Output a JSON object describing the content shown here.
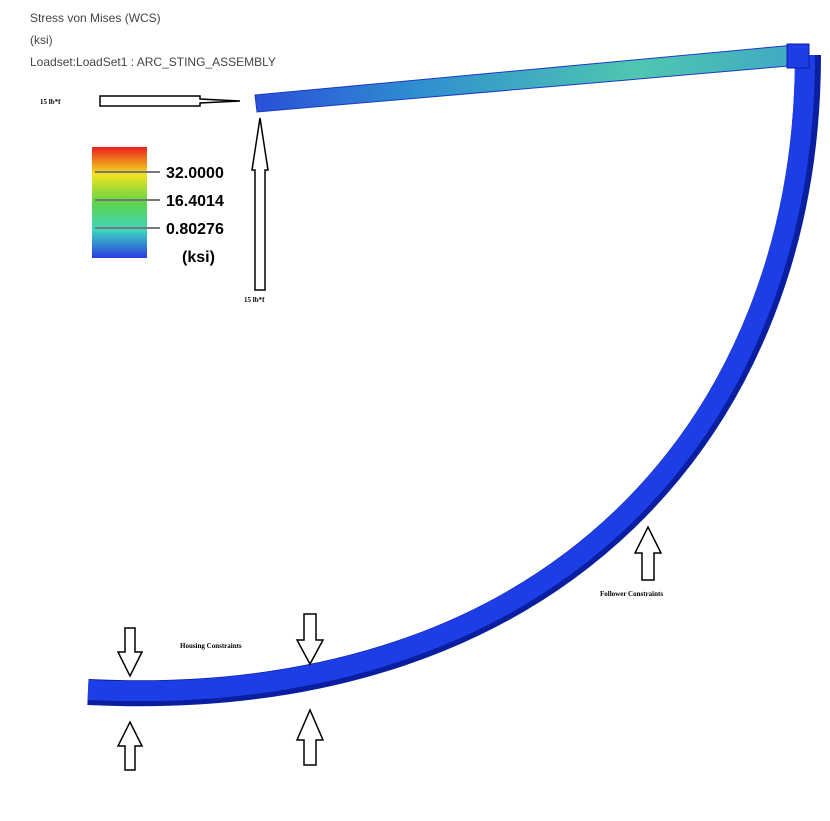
{
  "header": {
    "title": "Stress von Mises (WCS)",
    "units": "(ksi)",
    "loadset": "Loadset:LoadSet1 :  ARC_STING_ASSEMBLY"
  },
  "legend": {
    "labels": [
      "32.0000",
      "16.4014",
      "0.80276"
    ],
    "units": "(ksi)"
  },
  "loads": {
    "horizontal": "15 lb*f",
    "vertical": "15 lb*f"
  },
  "annotations": {
    "housing": "Housing Constraints",
    "follower": "Follower Constraints"
  }
}
